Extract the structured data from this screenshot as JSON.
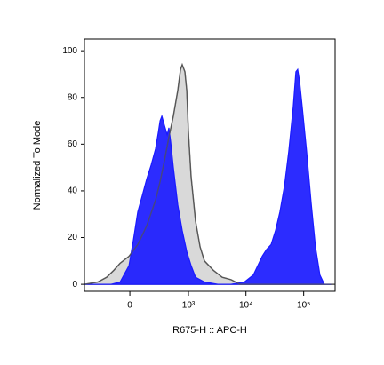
{
  "chart_data": {
    "type": "area",
    "x_label": "R675-H :: APC-H",
    "y_label": "Normalized To Mode",
    "xscale": "biexponential",
    "xlim": [
      -580,
      350000
    ],
    "xticks": [
      0,
      {
        "value": 1000,
        "label": "10³"
      },
      {
        "value": 10000,
        "label": "10⁴"
      },
      {
        "value": 100000,
        "label": "10⁵"
      }
    ],
    "ylim": [
      -3,
      105
    ],
    "yticks": [
      0,
      20,
      40,
      60,
      80,
      100
    ],
    "grid": false,
    "series": [
      {
        "color": "#d9d9d9",
        "line_color": "#555555",
        "x": [
          -577,
          -322,
          -207,
          -133,
          -78,
          -7,
          63,
          141,
          237,
          297,
          363,
          442,
          536,
          646,
          722,
          774,
          866,
          932,
          1000,
          1115,
          1334,
          1597,
          1907,
          2720,
          3880,
          5538,
          7880,
          11230,
          22815,
          340000
        ],
        "values": [
          0,
          1,
          3,
          6,
          9,
          12,
          17,
          25,
          36,
          44,
          53,
          63,
          72,
          83,
          92,
          94,
          91,
          83,
          65,
          46,
          27,
          16,
          10,
          6,
          3,
          2,
          0,
          0,
          0,
          0
        ]
      },
      {
        "color": "#1a1aff",
        "x": [
          -577,
          -322,
          -159,
          -78,
          -7,
          28,
          63,
          101,
          141,
          186,
          237,
          272,
          297,
          322,
          363,
          410,
          442,
          478,
          536,
          646,
          774,
          932,
          1115,
          1334,
          1907,
          3249,
          5538,
          9419,
          13416,
          16010,
          19110,
          22815,
          27240,
          32500,
          38800,
          46330,
          55300,
          66030,
          73420,
          78780,
          84630,
          94190,
          112300,
          134200,
          160100,
          191100,
          228200,
          292300
        ],
        "values": [
          0,
          0,
          0,
          1,
          8,
          19,
          31,
          38,
          45,
          51,
          58,
          65,
          70,
          72,
          68,
          64,
          67,
          61,
          50,
          34,
          23,
          14,
          8,
          3,
          1,
          0,
          0,
          1,
          4,
          8,
          12,
          15,
          17,
          23,
          31,
          42,
          57,
          76,
          91,
          92,
          87,
          76,
          57,
          35,
          16,
          4,
          0,
          0
        ]
      }
    ]
  }
}
